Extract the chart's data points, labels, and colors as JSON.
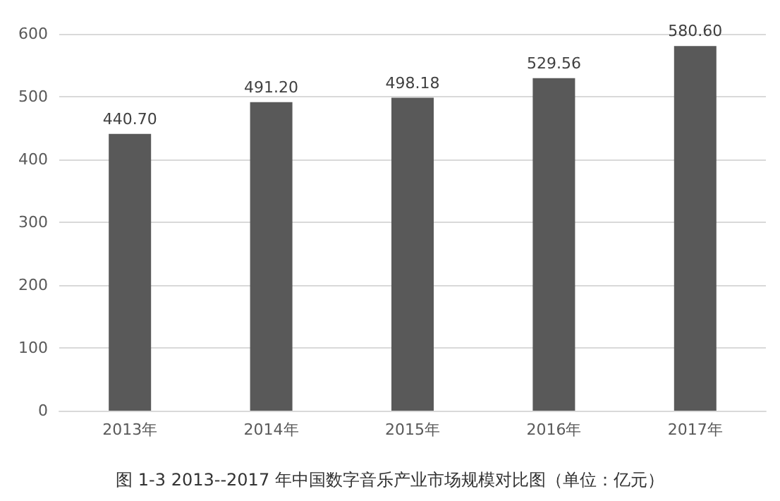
{
  "chart_data": {
    "type": "bar",
    "title": "图 1-3 2013--2017 年中国数字音乐产业市场规模对比图（单位：亿元）",
    "categories": [
      "2013年",
      "2014年",
      "2015年",
      "2016年",
      "2017年"
    ],
    "values": [
      440.7,
      491.2,
      498.18,
      529.56,
      580.6
    ],
    "value_labels": [
      "440.70",
      "491.20",
      "498.18",
      "529.56",
      "580.60"
    ],
    "color": "#595959",
    "ylim": [
      0,
      600
    ],
    "yticks": [
      0,
      100,
      200,
      300,
      400,
      500,
      600
    ],
    "grid": "y"
  }
}
